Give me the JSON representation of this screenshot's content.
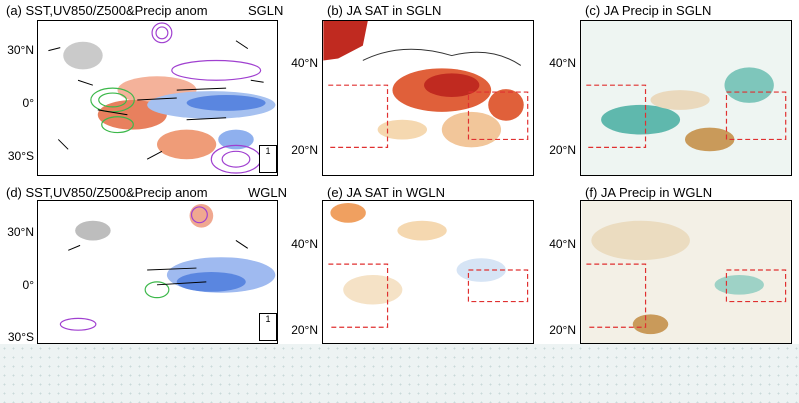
{
  "panels": [
    {
      "id": "a",
      "title": "(a) SST,UV850/Z500&Precip anom",
      "tag": "SGLN"
    },
    {
      "id": "b",
      "title": "(b) JA SAT in SGLN"
    },
    {
      "id": "c",
      "title": "(c) JA Precip in SGLN"
    },
    {
      "id": "d",
      "title": "(d) SST,UV850/Z500&Precip anom",
      "tag": "WGLN"
    },
    {
      "id": "e",
      "title": "(e) JA SAT in WGLN"
    },
    {
      "id": "f",
      "title": "(f) JA Precip in WGLN"
    }
  ],
  "lat_labels_left": [
    "30°N",
    "0°",
    "30°S"
  ],
  "lat_labels_mid": [
    "40°N",
    "20°N"
  ],
  "vector_key": "1",
  "colors": {
    "warm": "#e0603a",
    "cool": "#6f9be6",
    "green": "#3cb84a",
    "purple": "#a040d0",
    "teal": "#5fb8ad",
    "brown": "#c99a5a",
    "dashed_box": "#e03030"
  }
}
